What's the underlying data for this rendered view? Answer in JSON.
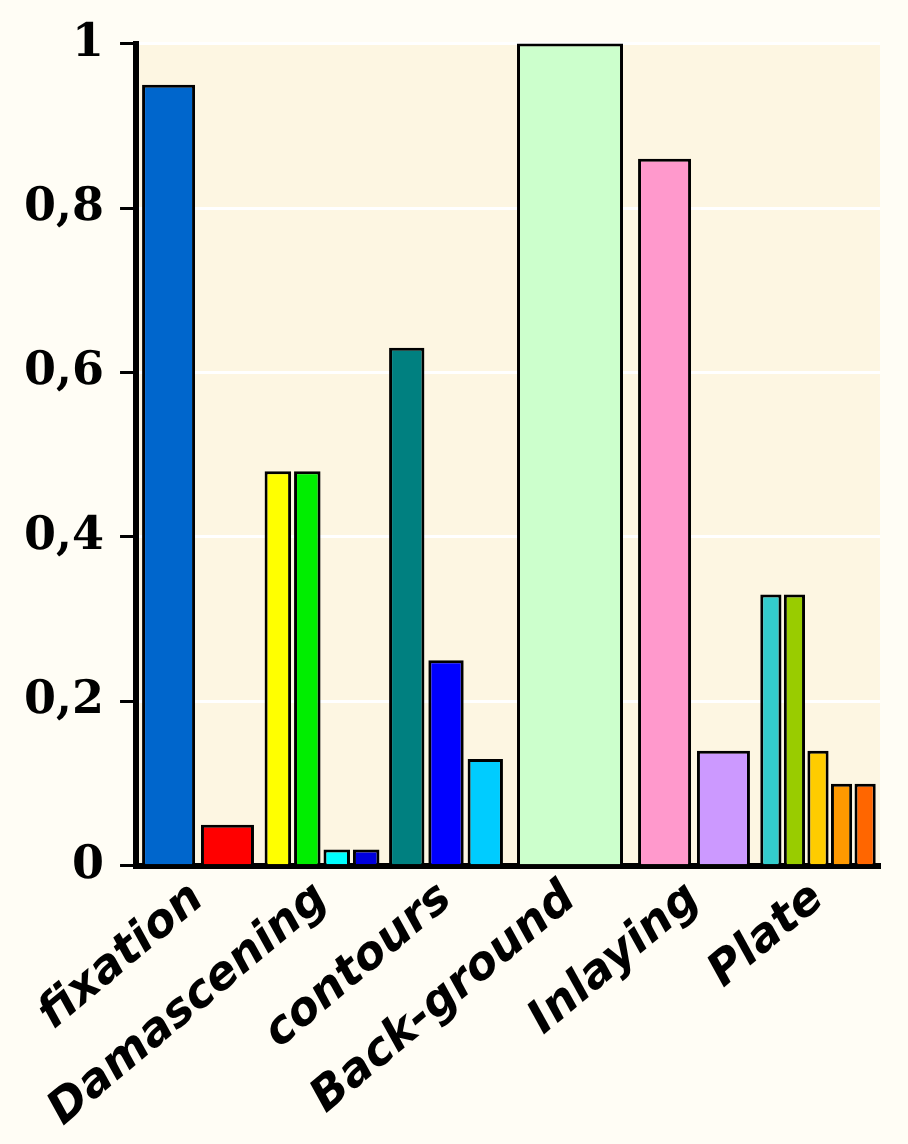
{
  "chart_data": {
    "type": "bar",
    "categories": [
      "fixation",
      "Damascening",
      "contours",
      "Back-ground",
      "Inlaying",
      "Plate"
    ],
    "series": [
      {
        "colors": [
          "#0066cc",
          "#ffff00",
          "#008080",
          "#ccffcc",
          "#ff99cc",
          "#33cccc"
        ],
        "values": [
          0.95,
          0.48,
          0.63,
          1.0,
          0.86,
          0.33
        ]
      },
      {
        "colors": [
          "#ff0000",
          "#00ee00",
          "#0000ff",
          null,
          "#cc99ff",
          "#99cc00"
        ],
        "values": [
          0.05,
          0.48,
          0.25,
          null,
          0.14,
          0.33
        ]
      },
      {
        "colors": [
          null,
          "#00ffff",
          "#00ccff",
          null,
          null,
          "#ffcc00"
        ],
        "values": [
          null,
          0.02,
          0.13,
          null,
          null,
          0.14
        ]
      },
      {
        "colors": [
          null,
          "#0000dd",
          null,
          null,
          null,
          "#ff9900"
        ],
        "values": [
          null,
          0.02,
          null,
          null,
          null,
          0.1
        ]
      },
      {
        "colors": [
          null,
          null,
          null,
          null,
          null,
          "#ff6600"
        ],
        "values": [
          null,
          null,
          null,
          null,
          null,
          0.1
        ]
      }
    ],
    "ylim": [
      0,
      1
    ],
    "yticks": [
      0,
      {
        "value": 0.2,
        "label": "0,2"
      },
      {
        "value": 0.4,
        "label": "0,4"
      },
      {
        "value": 0.6,
        "label": "0,6"
      },
      {
        "value": 0.8,
        "label": "0,8"
      },
      1
    ],
    "grid": "y",
    "legend": false
  }
}
